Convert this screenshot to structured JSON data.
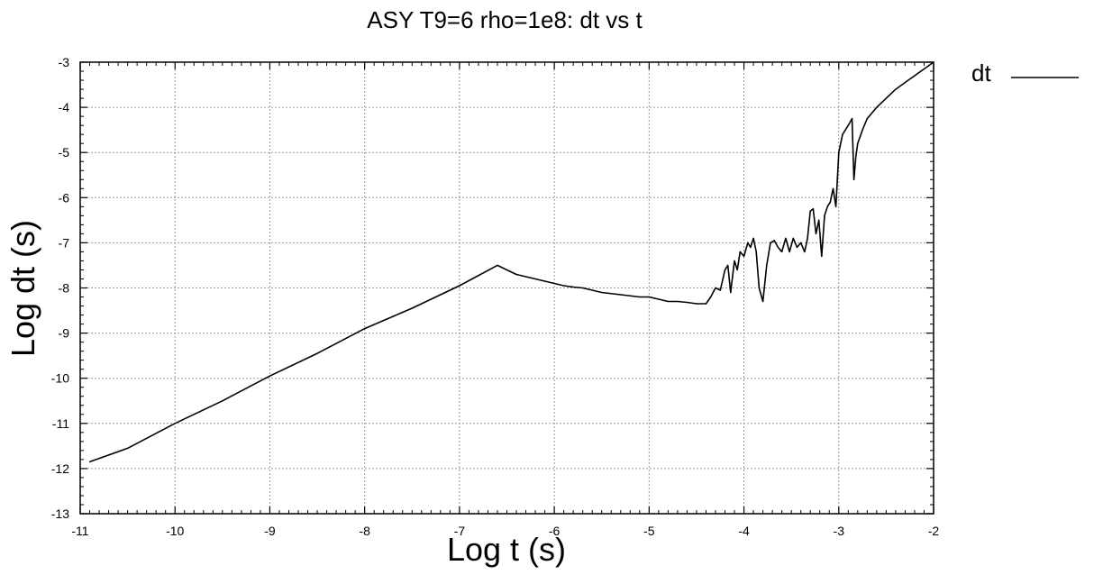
{
  "chart_data": {
    "type": "line",
    "title": "ASY T9=6 rho=1e8: dt vs t",
    "xlabel": "Log t (s)",
    "ylabel": "Log dt (s)",
    "xlim": [
      -11,
      -2
    ],
    "ylim": [
      -13,
      -3
    ],
    "xscale": "linear",
    "yscale": "linear",
    "x_ticks": [
      "-11",
      "-10",
      "-9",
      "-8",
      "-7",
      "-6",
      "-5",
      "-4",
      "-3",
      "-2"
    ],
    "y_ticks": [
      "-3",
      "-4",
      "-5",
      "-6",
      "-7",
      "-8",
      "-9",
      "-10",
      "-11",
      "-12",
      "-13"
    ],
    "grid": true,
    "legend": {
      "position": "top-right, outside plot"
    },
    "series": [
      {
        "name": "dt",
        "color": "#000000",
        "x": [
          -10.9,
          -10.5,
          -10.0,
          -9.5,
          -9.0,
          -8.5,
          -8.0,
          -7.5,
          -7.0,
          -6.6,
          -6.5,
          -6.4,
          -6.3,
          -6.2,
          -6.1,
          -6.0,
          -5.9,
          -5.8,
          -5.7,
          -5.5,
          -5.3,
          -5.1,
          -5.0,
          -4.9,
          -4.8,
          -4.7,
          -4.6,
          -4.5,
          -4.4,
          -4.35,
          -4.3,
          -4.25,
          -4.2,
          -4.17,
          -4.14,
          -4.1,
          -4.07,
          -4.04,
          -4.0,
          -3.96,
          -3.93,
          -3.9,
          -3.87,
          -3.84,
          -3.8,
          -3.76,
          -3.72,
          -3.68,
          -3.64,
          -3.6,
          -3.56,
          -3.52,
          -3.48,
          -3.44,
          -3.4,
          -3.36,
          -3.33,
          -3.3,
          -3.27,
          -3.24,
          -3.21,
          -3.18,
          -3.15,
          -3.12,
          -3.09,
          -3.06,
          -3.03,
          -3.0,
          -2.96,
          -2.9,
          -2.86,
          -2.84,
          -2.82,
          -2.8,
          -2.75,
          -2.7,
          -2.6,
          -2.5,
          -2.4,
          -2.3,
          -2.2,
          -2.1,
          -2.0
        ],
        "y": [
          -11.85,
          -11.55,
          -11.0,
          -10.5,
          -9.95,
          -9.45,
          -8.9,
          -8.45,
          -7.95,
          -7.5,
          -7.6,
          -7.7,
          -7.75,
          -7.8,
          -7.85,
          -7.9,
          -7.95,
          -7.98,
          -8.0,
          -8.1,
          -8.15,
          -8.2,
          -8.2,
          -8.25,
          -8.3,
          -8.3,
          -8.32,
          -8.35,
          -8.35,
          -8.2,
          -8.0,
          -8.05,
          -7.6,
          -7.5,
          -8.1,
          -7.4,
          -7.6,
          -7.2,
          -7.3,
          -7.0,
          -7.1,
          -6.9,
          -7.2,
          -8.0,
          -8.3,
          -7.5,
          -7.0,
          -6.95,
          -7.1,
          -7.2,
          -6.9,
          -7.2,
          -6.9,
          -7.1,
          -7.0,
          -7.2,
          -6.9,
          -6.3,
          -6.25,
          -6.8,
          -6.5,
          -7.3,
          -6.4,
          -6.2,
          -6.1,
          -5.8,
          -6.2,
          -5.0,
          -4.6,
          -4.4,
          -4.25,
          -5.6,
          -5.1,
          -4.8,
          -4.5,
          -4.25,
          -4.0,
          -3.8,
          -3.6,
          -3.45,
          -3.3,
          -3.15,
          -3.0
        ]
      }
    ]
  }
}
